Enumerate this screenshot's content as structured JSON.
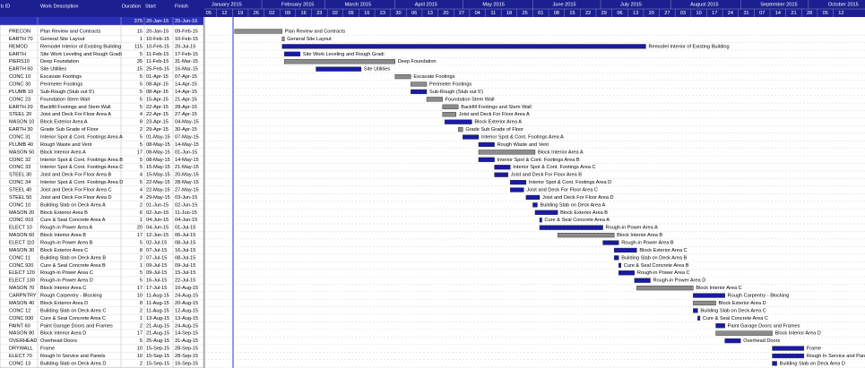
{
  "header": {
    "columns": [
      "b ID",
      "Work Description",
      "Duration",
      "Start",
      "Finish"
    ]
  },
  "summary": {
    "duration": 375,
    "start": "20-Jan-15",
    "finish": "25-Jun-16"
  },
  "timeline": {
    "months": [
      "January 2015",
      "February 2015",
      "March 2015",
      "April 2015",
      "May 2015",
      "June 2015",
      "July 2015",
      "August 2015",
      "September 2015",
      "October 2015"
    ],
    "days": [
      "05",
      "12",
      "19",
      "26",
      "02",
      "09",
      "16",
      "23",
      "02",
      "09",
      "16",
      "23",
      "30",
      "06",
      "13",
      "20",
      "27",
      "04",
      "11",
      "18",
      "25",
      "01",
      "08",
      "15",
      "22",
      "29",
      "06",
      "13",
      "20",
      "27",
      "03",
      "10",
      "17",
      "24",
      "31",
      "07",
      "14",
      "21",
      "28",
      "05",
      "12"
    ]
  },
  "rows": [
    {
      "id": "PRECON",
      "description": "Plan Review and Contracts",
      "duration": 15,
      "start": "20-Jan-15",
      "finish": "09-Feb-15",
      "color": "#8c8c8c"
    },
    {
      "id": "EARTH 70",
      "description": "General Site Layout",
      "duration": 1,
      "start": "10-Feb-15",
      "finish": "10-Feb-15",
      "color": "#8c8c8c"
    },
    {
      "id": "REMOD",
      "description": "Remodel Interior of Existing Building",
      "duration": 115,
      "start": "10-Feb-15",
      "finish": "20-Jul-15",
      "color": "#1a1aa6"
    },
    {
      "id": "EARTH",
      "description": "Site Work Leveling and Rough Gradi",
      "duration": 5,
      "start": "11-Feb-15",
      "finish": "17-Feb-15",
      "color": "#1a1aa6"
    },
    {
      "id": "PIERS10",
      "description": "Deep Foundation",
      "duration": 35,
      "start": "11-Feb-15",
      "finish": "31-Mar-15",
      "color": "#8c8c8c"
    },
    {
      "id": "EARTH 60",
      "description": "Site Utilities",
      "duration": 15,
      "start": "25-Feb-15",
      "finish": "16-Mar-15",
      "color": "#1a1aa6"
    },
    {
      "id": "CONC 10",
      "description": "Excavate Footings",
      "duration": 5,
      "start": "01-Apr-15",
      "finish": "07-Apr-15",
      "color": "#8c8c8c"
    },
    {
      "id": "CONC 30",
      "description": "Perimeter Footings",
      "duration": 5,
      "start": "08-Apr-15",
      "finish": "14-Apr-15",
      "color": "#8c8c8c"
    },
    {
      "id": "PLUMB 10",
      "description": "Sub-Rough (Stub out 5')",
      "duration": 5,
      "start": "08-Apr-15",
      "finish": "14-Apr-15",
      "color": "#1a1aa6"
    },
    {
      "id": "CONC 23",
      "description": "Foundation Stem Wall",
      "duration": 5,
      "start": "15-Apr-15",
      "finish": "21-Apr-15",
      "color": "#8c8c8c"
    },
    {
      "id": "EARTH 20",
      "description": "Backfill Footings and Stem Wall",
      "duration": 5,
      "start": "22-Apr-15",
      "finish": "28-Apr-15",
      "color": "#8c8c8c"
    },
    {
      "id": "STEEL 20",
      "description": "Joist and Deck For Floor Area A",
      "duration": 4,
      "start": "22-Apr-15",
      "finish": "27-Apr-15",
      "color": "#8c8c8c"
    },
    {
      "id": "MASON 10",
      "description": "Block Exterior Area A",
      "duration": 8,
      "start": "23-Apr-15",
      "finish": "04-May-15",
      "color": "#1a1aa6"
    },
    {
      "id": "EARTH 30",
      "description": "Grade Sub Grade of Floor",
      "duration": 2,
      "start": "29-Apr-15",
      "finish": "30-Apr-15",
      "color": "#8c8c8c"
    },
    {
      "id": "CONC 31",
      "description": "Interior Spot & Cont. Footings Area A",
      "duration": 5,
      "start": "01-May-15",
      "finish": "07-May-15",
      "color": "#1a1aa6"
    },
    {
      "id": "PLUMB 40",
      "description": "Rough Waste and Vent",
      "duration": 5,
      "start": "08-May-15",
      "finish": "14-May-15",
      "color": "#1a1aa6"
    },
    {
      "id": "MASON 50",
      "description": "Block Interior Area A",
      "duration": 17,
      "start": "08-May-15",
      "finish": "01-Jun-15",
      "color": "#8c8c8c"
    },
    {
      "id": "CONC 32",
      "description": "Interior Spot & Cont. Footings Area B",
      "duration": 5,
      "start": "08-May-15",
      "finish": "14-May-15",
      "color": "#1a1aa6"
    },
    {
      "id": "CONC 33",
      "description": "Interior Spot & Cont. Footings Area C",
      "duration": 5,
      "start": "15-May-15",
      "finish": "21-May-15",
      "color": "#1a1aa6"
    },
    {
      "id": "STEEL 30",
      "description": "Joist and Deck For Floor Area B",
      "duration": 4,
      "start": "15-May-15",
      "finish": "20-May-15",
      "color": "#1a1aa6"
    },
    {
      "id": "CONC 34",
      "description": "Interior Spot & Cont. Footings Area D",
      "duration": 5,
      "start": "22-May-15",
      "finish": "28-May-15",
      "color": "#1a1aa6"
    },
    {
      "id": "STEEL 40",
      "description": "Joist and Deck For Floor Area C",
      "duration": 4,
      "start": "22-May-15",
      "finish": "27-May-15",
      "color": "#1a1aa6"
    },
    {
      "id": "STEEL 50",
      "description": "Joist and Deck For Floor Area D",
      "duration": 4,
      "start": "29-May-15",
      "finish": "03-Jun-15",
      "color": "#1a1aa6"
    },
    {
      "id": "CONC 10",
      "description": "Building Slab on Deck Area A",
      "duration": 2,
      "start": "01-Jun-15",
      "finish": "02-Jun-15",
      "color": "#1a1aa6"
    },
    {
      "id": "MASON 20",
      "description": "Block Exterior Area B",
      "duration": 6,
      "start": "02-Jun-15",
      "finish": "11-Jun-15",
      "color": "#1a1aa6"
    },
    {
      "id": "CONC 910",
      "description": "Cure & Seal Concrete Area A",
      "duration": 1,
      "start": "04-Jun-15",
      "finish": "04-Jun-15",
      "color": "#1a1aa6"
    },
    {
      "id": "ELECT 10",
      "description": "Rough-in Power Area A",
      "duration": 20,
      "start": "04-Jun-15",
      "finish": "01-Jul-15",
      "color": "#1a1aa6"
    },
    {
      "id": "MASON 60",
      "description": "Block Interior Area B",
      "duration": 17,
      "start": "12-Jun-15",
      "finish": "06-Jul-15",
      "color": "#8c8c8c"
    },
    {
      "id": "ELECT 110",
      "description": "Rough-in Power Area B",
      "duration": 5,
      "start": "02-Jul-15",
      "finish": "08-Jul-15",
      "color": "#1a1aa6"
    },
    {
      "id": "MASON 30",
      "description": "Block Exterior Area C",
      "duration": 8,
      "start": "07-Jul-15",
      "finish": "16-Jul-15",
      "color": "#1a1aa6"
    },
    {
      "id": "CONC 11",
      "description": "Building Slab on Deck Area B",
      "duration": 2,
      "start": "07-Jul-15",
      "finish": "08-Jul-15",
      "color": "#1a1aa6"
    },
    {
      "id": "CONC 920",
      "description": "Cure & Seal Concrete Area B",
      "duration": 1,
      "start": "09-Jul-15",
      "finish": "09-Jul-15",
      "color": "#1a1aa6"
    },
    {
      "id": "ELECT 120",
      "description": "Rough-in Power Area C",
      "duration": 5,
      "start": "09-Jul-15",
      "finish": "15-Jul-15",
      "color": "#1a1aa6"
    },
    {
      "id": "ELECT 130",
      "description": "Rough-in Power Area D",
      "duration": 5,
      "start": "16-Jul-15",
      "finish": "22-Jul-15",
      "color": "#1a1aa6"
    },
    {
      "id": "MASON 70",
      "description": "Block Interior Area C",
      "duration": 17,
      "start": "17-Jul-15",
      "finish": "10-Aug-15",
      "color": "#8c8c8c"
    },
    {
      "id": "CARPNTRY",
      "description": "Rough Carpentry - Blocking",
      "duration": 10,
      "start": "11-Aug-15",
      "finish": "24-Aug-15",
      "color": "#1a1aa6"
    },
    {
      "id": "MASON 40",
      "description": "Block Exterior Area D",
      "duration": 8,
      "start": "11-Aug-15",
      "finish": "20-Aug-15",
      "color": "#8c8c8c"
    },
    {
      "id": "CONC 12",
      "description": "Building Slab on Deck Area C",
      "duration": 2,
      "start": "11-Aug-15",
      "finish": "12-Aug-15",
      "color": "#1a1aa6"
    },
    {
      "id": "CONC 930",
      "description": "Cure & Seal Concrete Area C",
      "duration": 1,
      "start": "13-Aug-15",
      "finish": "13-Aug-15",
      "color": "#1a1aa6"
    },
    {
      "id": "PAINT 60",
      "description": "Paint Garage Doors and Frames",
      "duration": 2,
      "start": "21-Aug-15",
      "finish": "24-Aug-15",
      "color": "#1a1aa6"
    },
    {
      "id": "MASON 80",
      "description": "Block Interior Area D",
      "duration": 17,
      "start": "21-Aug-15",
      "finish": "14-Sep-15",
      "color": "#8c8c8c"
    },
    {
      "id": "OVERHEAD",
      "description": "Overhead Doors",
      "duration": 5,
      "start": "25-Aug-15",
      "finish": "31-Aug-15",
      "color": "#1a1aa6"
    },
    {
      "id": "DRYWALL",
      "description": "Frame",
      "duration": 10,
      "start": "15-Sep-15",
      "finish": "28-Sep-15",
      "color": "#1a1aa6"
    },
    {
      "id": "ELECT 70",
      "description": "Rough In Service and Panels",
      "duration": 10,
      "start": "15-Sep-15",
      "finish": "28-Sep-15",
      "color": "#1a1aa6"
    },
    {
      "id": "CONC 13",
      "description": "Building Slab on Deck Area D",
      "duration": 2,
      "start": "15-Sep-15",
      "finish": "16-Sep-15",
      "color": "#1a1aa6"
    }
  ]
}
